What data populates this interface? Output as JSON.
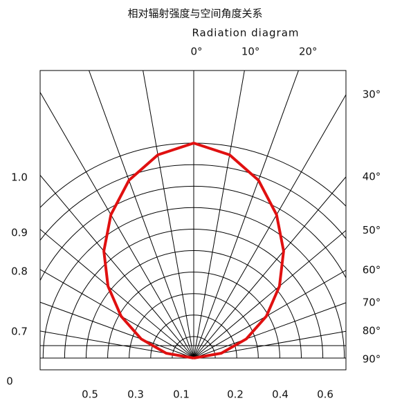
{
  "chart_data": {
    "type": "polar",
    "title": "相对辐射强度与空间角度关系",
    "subtitle": "Radiation diagram",
    "x": [
      -90,
      -80,
      -70,
      -60,
      -50,
      -40,
      -30,
      -20,
      -10,
      0,
      10,
      20,
      30,
      40,
      50,
      60,
      70,
      80,
      90
    ],
    "series": [
      {
        "color": "#e01010",
        "values": [
          0,
          0.13,
          0.26,
          0.39,
          0.52,
          0.65,
          0.77,
          0.88,
          0.96,
          1.0,
          0.96,
          0.88,
          0.77,
          0.65,
          0.52,
          0.39,
          0.26,
          0.13,
          0
        ]
      }
    ],
    "rlim": [
      0,
      1.0
    ],
    "rticks": [
      0.1,
      0.2,
      0.3,
      0.4,
      0.5,
      0.6,
      0.7,
      0.8,
      0.9,
      1.0
    ],
    "angle_ticks": [
      {
        "value": 0,
        "label": "0°"
      },
      {
        "value": 10,
        "label": "10°"
      },
      {
        "value": 20,
        "label": "20°"
      },
      {
        "value": 30,
        "label": "30°"
      },
      {
        "value": 40,
        "label": "40°"
      },
      {
        "value": 50,
        "label": "50°"
      },
      {
        "value": 60,
        "label": "60°"
      },
      {
        "value": 70,
        "label": "70°"
      },
      {
        "value": 80,
        "label": "80°"
      },
      {
        "value": 90,
        "label": "90°"
      }
    ],
    "left_labels": [
      {
        "value": 1.0,
        "label": "1.0"
      },
      {
        "value": 0.9,
        "label": "0.9"
      },
      {
        "value": 0.8,
        "label": "0.8"
      },
      {
        "value": 0.7,
        "label": "0.7"
      },
      0
    ],
    "bottom_labels": [
      0.5,
      0.3,
      0.1,
      0.2,
      0.4,
      0.6
    ]
  }
}
